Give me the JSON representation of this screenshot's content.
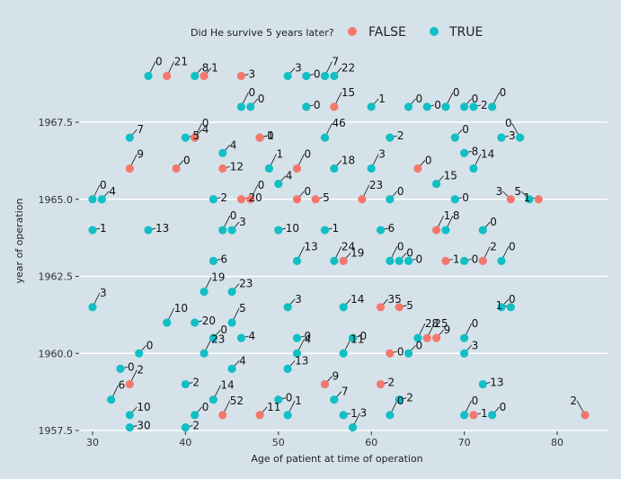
{
  "chart_data": {
    "type": "scatter",
    "title": "",
    "xlabel": "Age of patient at time of operation",
    "ylabel": "year of operation",
    "xlim": [
      27.5,
      85.5
    ],
    "ylim": [
      1957.5,
      1970.0
    ],
    "x_ticks": [
      "30",
      "40",
      "50",
      "60",
      "70",
      "80"
    ],
    "y_ticks": [
      "1957.5",
      "1960.0",
      "1962.5",
      "1965.0",
      "1967.5"
    ],
    "grid": true,
    "legend": {
      "title": "Did He survive 5 years later?",
      "position": "top",
      "entries": [
        "FALSE",
        "TRUE"
      ]
    },
    "colors": {
      "FALSE": "#f4776d",
      "TRUE": "#11bfc4",
      "background": "#d5e2ea",
      "grid": "#ffffff"
    },
    "series": [
      {
        "name": "TRUE",
        "points": [
          {
            "x": 30,
            "y": 1965.0,
            "label": "0"
          },
          {
            "x": 31,
            "y": 1965.0,
            "label": "4"
          },
          {
            "x": 30,
            "y": 1964.0,
            "label": "1"
          },
          {
            "x": 30,
            "y": 1961.5,
            "label": "3"
          },
          {
            "x": 34,
            "y": 1967.0,
            "label": "7"
          },
          {
            "x": 36,
            "y": 1964.0,
            "label": "13"
          },
          {
            "x": 38,
            "y": 1961.0,
            "label": "10"
          },
          {
            "x": 35,
            "y": 1960.0,
            "label": "0"
          },
          {
            "x": 33,
            "y": 1959.5,
            "label": "0"
          },
          {
            "x": 32,
            "y": 1958.5,
            "label": "6"
          },
          {
            "x": 34,
            "y": 1958.0,
            "label": "10"
          },
          {
            "x": 34,
            "y": 1957.6,
            "label": "30"
          },
          {
            "x": 36,
            "y": 1969.0,
            "label": "0"
          },
          {
            "x": 41,
            "y": 1969.0,
            "label": "8"
          },
          {
            "x": 40,
            "y": 1967.0,
            "label": "5"
          },
          {
            "x": 41,
            "y": 1967.0,
            "label": "0"
          },
          {
            "x": 44,
            "y": 1966.5,
            "label": "4"
          },
          {
            "x": 43,
            "y": 1965.0,
            "label": "2"
          },
          {
            "x": 44,
            "y": 1964.0,
            "label": "0"
          },
          {
            "x": 45,
            "y": 1964.0,
            "label": "3"
          },
          {
            "x": 43,
            "y": 1963.0,
            "label": "6"
          },
          {
            "x": 42,
            "y": 1962.0,
            "label": "19"
          },
          {
            "x": 45,
            "y": 1962.0,
            "label": "23"
          },
          {
            "x": 41,
            "y": 1961.0,
            "label": "20"
          },
          {
            "x": 45,
            "y": 1961.0,
            "label": "5"
          },
          {
            "x": 43,
            "y": 1960.5,
            "label": "0"
          },
          {
            "x": 46,
            "y": 1960.5,
            "label": "4"
          },
          {
            "x": 42,
            "y": 1960.0,
            "label": "23"
          },
          {
            "x": 45,
            "y": 1959.5,
            "label": "4"
          },
          {
            "x": 40,
            "y": 1959.0,
            "label": "2"
          },
          {
            "x": 43,
            "y": 1958.5,
            "label": "14"
          },
          {
            "x": 41,
            "y": 1958.0,
            "label": "0"
          },
          {
            "x": 40,
            "y": 1957.6,
            "label": "2"
          },
          {
            "x": 46,
            "y": 1968.0,
            "label": "0"
          },
          {
            "x": 47,
            "y": 1968.0,
            "label": "0"
          },
          {
            "x": 48,
            "y": 1967.0,
            "label": "1"
          },
          {
            "x": 49,
            "y": 1966.0,
            "label": "1"
          },
          {
            "x": 50,
            "y": 1965.5,
            "label": "4"
          },
          {
            "x": 50,
            "y": 1964.0,
            "label": "10"
          },
          {
            "x": 52,
            "y": 1963.0,
            "label": "13"
          },
          {
            "x": 51,
            "y": 1961.5,
            "label": "3"
          },
          {
            "x": 52,
            "y": 1960.5,
            "label": "0"
          },
          {
            "x": 52,
            "y": 1960.0,
            "label": "4"
          },
          {
            "x": 51,
            "y": 1959.5,
            "label": "13"
          },
          {
            "x": 50,
            "y": 1958.5,
            "label": "0"
          },
          {
            "x": 51,
            "y": 1958.0,
            "label": "1"
          },
          {
            "x": 51,
            "y": 1969.0,
            "label": "3"
          },
          {
            "x": 53,
            "y": 1969.0,
            "label": "0"
          },
          {
            "x": 55,
            "y": 1969.0,
            "label": "7"
          },
          {
            "x": 56,
            "y": 1969.0,
            "label": "22"
          },
          {
            "x": 53,
            "y": 1968.0,
            "label": "0"
          },
          {
            "x": 55,
            "y": 1967.0,
            "label": "46"
          },
          {
            "x": 56,
            "y": 1966.0,
            "label": "18"
          },
          {
            "x": 55,
            "y": 1964.0,
            "label": "1"
          },
          {
            "x": 56,
            "y": 1963.0,
            "label": "24"
          },
          {
            "x": 57,
            "y": 1961.5,
            "label": "14"
          },
          {
            "x": 58,
            "y": 1960.5,
            "label": "0"
          },
          {
            "x": 57,
            "y": 1960.0,
            "label": "11"
          },
          {
            "x": 56,
            "y": 1958.5,
            "label": "7"
          },
          {
            "x": 57,
            "y": 1958.0,
            "label": "1"
          },
          {
            "x": 58,
            "y": 1957.6,
            "label": "3"
          },
          {
            "x": 60,
            "y": 1968.0,
            "label": "1"
          },
          {
            "x": 62,
            "y": 1967.0,
            "label": "2"
          },
          {
            "x": 60,
            "y": 1966.0,
            "label": "3"
          },
          {
            "x": 62,
            "y": 1965.0,
            "label": "0"
          },
          {
            "x": 61,
            "y": 1964.0,
            "label": "6"
          },
          {
            "x": 62,
            "y": 1963.0,
            "label": "0"
          },
          {
            "x": 63,
            "y": 1963.0,
            "label": "0"
          },
          {
            "x": 64,
            "y": 1963.0,
            "label": "0"
          },
          {
            "x": 65,
            "y": 1960.5,
            "label": "28"
          },
          {
            "x": 64,
            "y": 1960.0,
            "label": "0"
          },
          {
            "x": 63,
            "y": 1958.5,
            "label": "2"
          },
          {
            "x": 62,
            "y": 1958.0,
            "label": "0"
          },
          {
            "x": 64,
            "y": 1968.0,
            "label": "0"
          },
          {
            "x": 66,
            "y": 1968.0,
            "label": "0"
          },
          {
            "x": 68,
            "y": 1968.0,
            "label": "0"
          },
          {
            "x": 70,
            "y": 1968.0,
            "label": "0"
          },
          {
            "x": 71,
            "y": 1968.0,
            "label": "2"
          },
          {
            "x": 73,
            "y": 1968.0,
            "label": "0"
          },
          {
            "x": 69,
            "y": 1967.0,
            "label": "0"
          },
          {
            "x": 70,
            "y": 1966.5,
            "label": "8"
          },
          {
            "x": 71,
            "y": 1966.0,
            "label": "14"
          },
          {
            "x": 67,
            "y": 1965.5,
            "label": "15"
          },
          {
            "x": 69,
            "y": 1965.0,
            "label": "0"
          },
          {
            "x": 68,
            "y": 1964.0,
            "label": "8"
          },
          {
            "x": 72,
            "y": 1964.0,
            "label": "0"
          },
          {
            "x": 70,
            "y": 1963.0,
            "label": "0"
          },
          {
            "x": 74,
            "y": 1963.0,
            "label": "0"
          },
          {
            "x": 74,
            "y": 1961.5,
            "label": "0"
          },
          {
            "x": 75,
            "y": 1961.5,
            "label": "1"
          },
          {
            "x": 70,
            "y": 1960.5,
            "label": "0"
          },
          {
            "x": 70,
            "y": 1960.0,
            "label": "3"
          },
          {
            "x": 72,
            "y": 1959.0,
            "label": "13"
          },
          {
            "x": 70,
            "y": 1958.0,
            "label": "0"
          },
          {
            "x": 73,
            "y": 1958.0,
            "label": "0"
          },
          {
            "x": 74,
            "y": 1967.0,
            "label": "3"
          },
          {
            "x": 76,
            "y": 1967.0,
            "label": "0"
          },
          {
            "x": 77,
            "y": 1965.0,
            "label": "5"
          }
        ]
      },
      {
        "name": "FALSE",
        "points": [
          {
            "x": 38,
            "y": 1969.0,
            "label": "21"
          },
          {
            "x": 42,
            "y": 1969.0,
            "label": "1"
          },
          {
            "x": 46,
            "y": 1969.0,
            "label": "3"
          },
          {
            "x": 56,
            "y": 1968.0,
            "label": "15"
          },
          {
            "x": 41,
            "y": 1967.0,
            "label": "4"
          },
          {
            "x": 48,
            "y": 1967.0,
            "label": "0"
          },
          {
            "x": 34,
            "y": 1966.0,
            "label": "9"
          },
          {
            "x": 39,
            "y": 1966.0,
            "label": "0"
          },
          {
            "x": 44,
            "y": 1966.0,
            "label": "12"
          },
          {
            "x": 52,
            "y": 1966.0,
            "label": "0"
          },
          {
            "x": 65,
            "y": 1966.0,
            "label": "0"
          },
          {
            "x": 46,
            "y": 1965.0,
            "label": "20"
          },
          {
            "x": 47,
            "y": 1965.0,
            "label": "0"
          },
          {
            "x": 52,
            "y": 1965.0,
            "label": "0"
          },
          {
            "x": 54,
            "y": 1965.0,
            "label": "5"
          },
          {
            "x": 59,
            "y": 1965.0,
            "label": "23"
          },
          {
            "x": 75,
            "y": 1965.0,
            "label": "3"
          },
          {
            "x": 78,
            "y": 1965.0,
            "label": "1"
          },
          {
            "x": 67,
            "y": 1964.0,
            "label": "1"
          },
          {
            "x": 57,
            "y": 1963.0,
            "label": "19"
          },
          {
            "x": 68,
            "y": 1963.0,
            "label": "1"
          },
          {
            "x": 72,
            "y": 1963.0,
            "label": "2"
          },
          {
            "x": 61,
            "y": 1961.5,
            "label": "35"
          },
          {
            "x": 63,
            "y": 1961.5,
            "label": "5"
          },
          {
            "x": 66,
            "y": 1960.5,
            "label": "25"
          },
          {
            "x": 67,
            "y": 1960.5,
            "label": "9"
          },
          {
            "x": 62,
            "y": 1960.0,
            "label": "0"
          },
          {
            "x": 34,
            "y": 1959.0,
            "label": "2"
          },
          {
            "x": 55,
            "y": 1959.0,
            "label": "9"
          },
          {
            "x": 61,
            "y": 1959.0,
            "label": "2"
          },
          {
            "x": 44,
            "y": 1958.0,
            "label": "52"
          },
          {
            "x": 48,
            "y": 1958.0,
            "label": "11"
          },
          {
            "x": 71,
            "y": 1958.0,
            "label": "1"
          },
          {
            "x": 83,
            "y": 1958.0,
            "label": "2"
          }
        ]
      }
    ]
  }
}
